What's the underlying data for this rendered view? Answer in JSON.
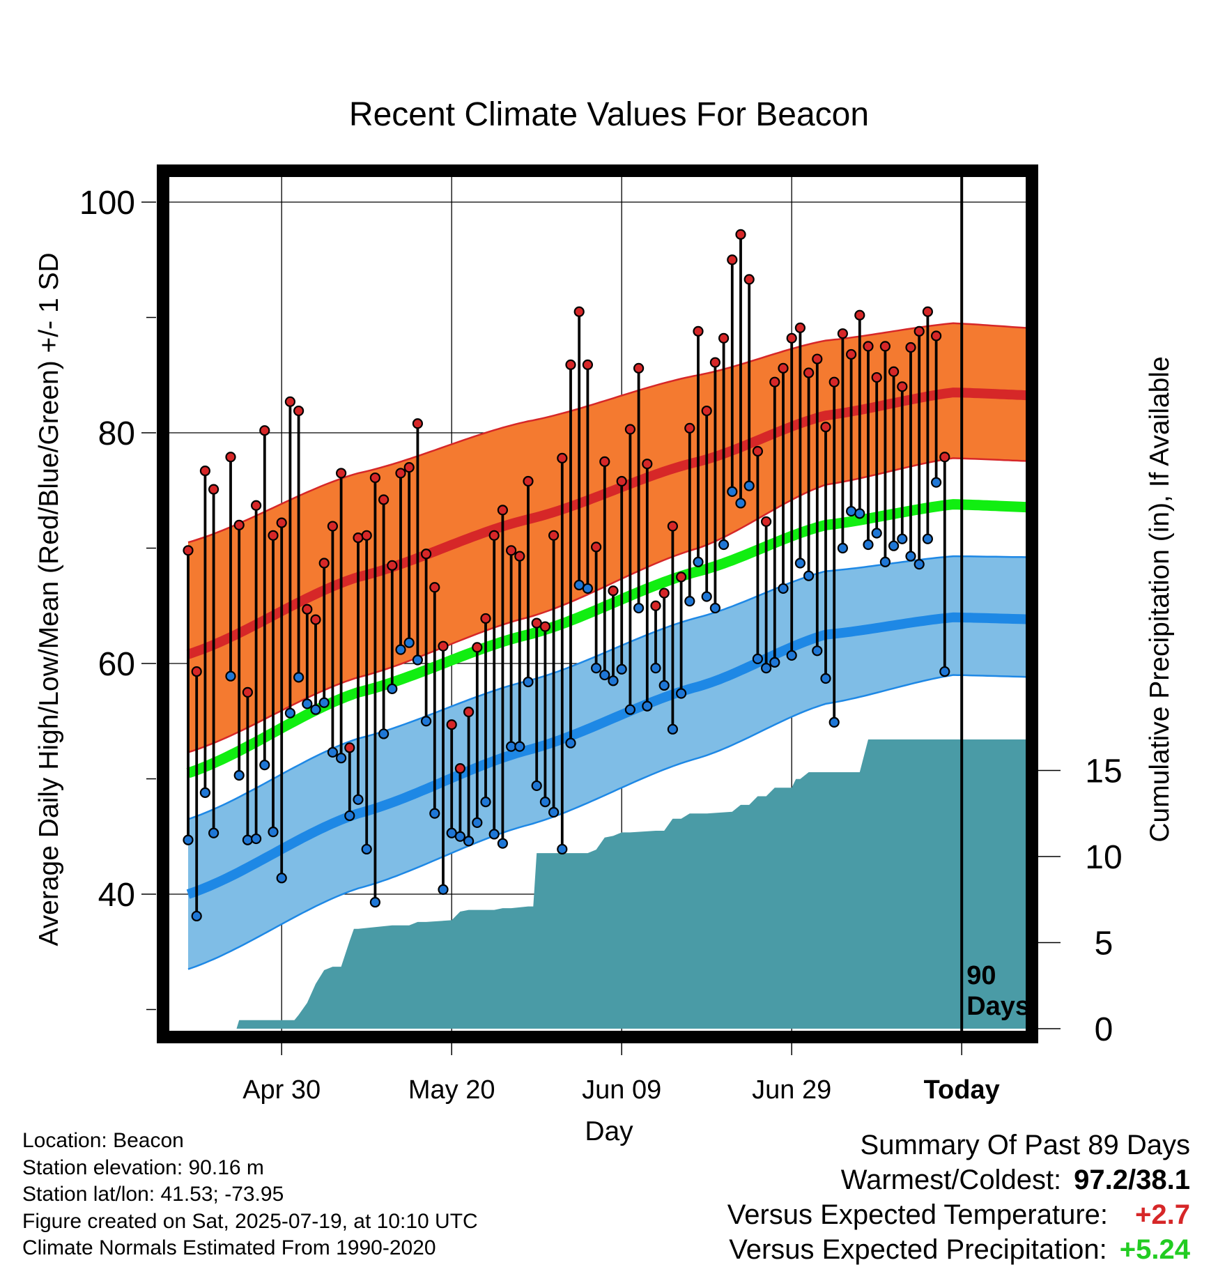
{
  "chart_data": {
    "type": "line",
    "title": "Recent Climate Values For Beacon",
    "xlabel": "Day",
    "ylabel": "Average Daily High/Low/Mean (Red/Blue/Green) +/- 1 SD",
    "y2label": "Cumulative Precipitation (in), If Available",
    "x_ticks": [
      {
        "day": 11,
        "label": "Apr 30"
      },
      {
        "day": 31,
        "label": "May 20"
      },
      {
        "day": 51,
        "label": "Jun 09"
      },
      {
        "day": 71,
        "label": "Jun 29"
      },
      {
        "day": 91,
        "label": "Today"
      }
    ],
    "ylim": [
      27,
      102
    ],
    "y_ticks": [
      40,
      60,
      80,
      100
    ],
    "y2lim": [
      0,
      25
    ],
    "y2_ticks": [
      0,
      5,
      10,
      15
    ],
    "xlim": [
      0,
      101
    ],
    "today_marker": {
      "day": 91,
      "label_line1": "90",
      "label_line2": "Days"
    },
    "normal_high": {
      "day": [
        0,
        20,
        40,
        60,
        75,
        90,
        101
      ],
      "mean": [
        60.8,
        67.5,
        72.5,
        77.5,
        81.5,
        83.5,
        83.2
      ],
      "upper": [
        70.5,
        76.5,
        81.0,
        85.0,
        88.0,
        89.5,
        89.0
      ],
      "lower": [
        52.3,
        58.8,
        64.0,
        70.0,
        75.5,
        77.8,
        77.5
      ]
    },
    "normal_mean": {
      "day": [
        0,
        20,
        40,
        60,
        75,
        90,
        101
      ],
      "mean": [
        50.5,
        57.5,
        62.5,
        68.0,
        72.0,
        73.8,
        73.5
      ]
    },
    "normal_low": {
      "day": [
        0,
        20,
        40,
        60,
        75,
        90,
        101
      ],
      "mean": [
        40.0,
        47.0,
        52.5,
        58.0,
        62.5,
        64.0,
        63.8
      ],
      "upper": [
        46.5,
        53.5,
        58.5,
        64.0,
        68.0,
        69.3,
        69.2
      ],
      "lower": [
        33.5,
        40.5,
        46.0,
        51.8,
        56.5,
        59.0,
        58.8
      ]
    },
    "series": [
      {
        "name": "High",
        "color": "#d62728",
        "values": [
          69.8,
          59.3,
          76.7,
          75.1,
          null,
          77.9,
          72.0,
          57.5,
          73.7,
          80.2,
          71.1,
          72.2,
          82.7,
          81.9,
          64.7,
          63.8,
          68.7,
          71.9,
          76.5,
          52.7,
          70.9,
          71.1,
          76.1,
          74.2,
          68.5,
          76.5,
          77.0,
          80.8,
          69.5,
          66.6,
          61.5,
          54.7,
          50.9,
          55.8,
          61.4,
          63.9,
          71.1,
          73.3,
          69.8,
          69.3,
          75.8,
          63.5,
          63.2,
          71.1,
          77.8,
          85.9,
          90.5,
          85.9,
          70.1,
          77.5,
          66.3,
          75.8,
          80.3,
          85.6,
          77.3,
          65.0,
          66.1,
          71.9,
          67.5,
          80.4,
          88.8,
          81.9,
          86.1,
          88.2,
          95.0,
          97.2,
          93.3,
          78.4,
          72.3,
          84.4,
          85.6,
          88.2,
          89.1,
          85.2,
          86.4,
          80.5,
          84.4,
          88.6,
          86.8,
          90.2,
          87.5,
          84.8,
          87.5,
          85.3,
          84.0,
          87.4,
          88.8,
          90.5,
          88.4,
          77.9,
          null
        ]
      },
      {
        "name": "Low",
        "color": "#1f77d6",
        "values": [
          44.7,
          38.1,
          48.8,
          45.3,
          null,
          58.9,
          50.3,
          44.7,
          44.8,
          51.2,
          45.4,
          41.4,
          55.7,
          58.8,
          56.5,
          56.0,
          56.6,
          52.3,
          51.8,
          46.8,
          48.2,
          43.9,
          39.3,
          53.9,
          57.8,
          61.2,
          61.8,
          60.3,
          55.0,
          47.0,
          40.4,
          45.3,
          45.0,
          44.6,
          46.2,
          48.0,
          45.2,
          44.4,
          52.8,
          52.8,
          58.4,
          49.4,
          48.0,
          47.1,
          43.9,
          53.1,
          66.8,
          66.5,
          59.6,
          59.0,
          58.5,
          59.5,
          56.0,
          64.8,
          56.3,
          59.6,
          58.1,
          54.3,
          57.4,
          65.4,
          68.8,
          65.8,
          64.8,
          70.3,
          74.9,
          73.9,
          75.4,
          60.4,
          59.6,
          60.1,
          66.5,
          60.7,
          68.7,
          67.6,
          61.1,
          58.7,
          54.9,
          70.0,
          73.2,
          73.0,
          70.3,
          71.3,
          68.8,
          70.2,
          70.8,
          69.3,
          68.6,
          70.8,
          75.7,
          59.3,
          null
        ]
      },
      {
        "name": "Precipitation",
        "color": "#4a9ba6",
        "day": [
          0,
          5.7,
          6,
          12.5,
          13,
          14,
          15,
          16,
          17,
          18,
          19,
          19.5,
          20,
          24,
          25,
          26,
          27,
          28,
          31,
          32,
          33,
          36,
          37,
          38,
          40,
          40.6,
          41,
          46.5,
          47,
          48,
          49,
          50,
          51,
          52,
          55,
          56,
          57,
          58,
          59,
          61,
          64,
          65,
          66,
          67,
          68,
          69,
          71,
          71.5,
          72,
          73,
          79,
          80,
          81,
          101
        ],
        "values": [
          0,
          0,
          0.5,
          0.5,
          0.8,
          1.5,
          2.6,
          3.4,
          3.6,
          3.6,
          5.1,
          5.8,
          5.8,
          6.0,
          6.0,
          6.0,
          6.2,
          6.2,
          6.3,
          6.8,
          6.9,
          6.9,
          7.0,
          7.0,
          7.1,
          7.1,
          10.2,
          10.2,
          10.2,
          10.4,
          11.1,
          11.2,
          11.4,
          11.4,
          11.5,
          11.5,
          12.2,
          12.2,
          12.5,
          12.5,
          12.6,
          13.0,
          13.0,
          13.5,
          13.5,
          14.0,
          14.0,
          14.5,
          14.5,
          14.9,
          14.9,
          16.8,
          16.8,
          16.8
        ]
      }
    ]
  },
  "info": {
    "location": "Location: Beacon",
    "elevation": "Station elevation: 90.16 m",
    "latlon": "Station lat/lon: 41.53; -73.95",
    "created": "Figure created on Sat, 2025-07-19, at 10:10 UTC",
    "normals": "Climate Normals Estimated From 1990-2020"
  },
  "summary": {
    "title": "Summary Of Past 89 Days",
    "warm_cold_label": "Warmest/Coldest:",
    "warm_cold_value": "97.2/38.1",
    "temp_label": "Versus Expected Temperature:",
    "temp_value": "+2.7",
    "temp_color": "#d62728",
    "precip_label": "Versus Expected Precipitation:",
    "precip_value": "+5.24",
    "precip_color": "#22cc22"
  }
}
